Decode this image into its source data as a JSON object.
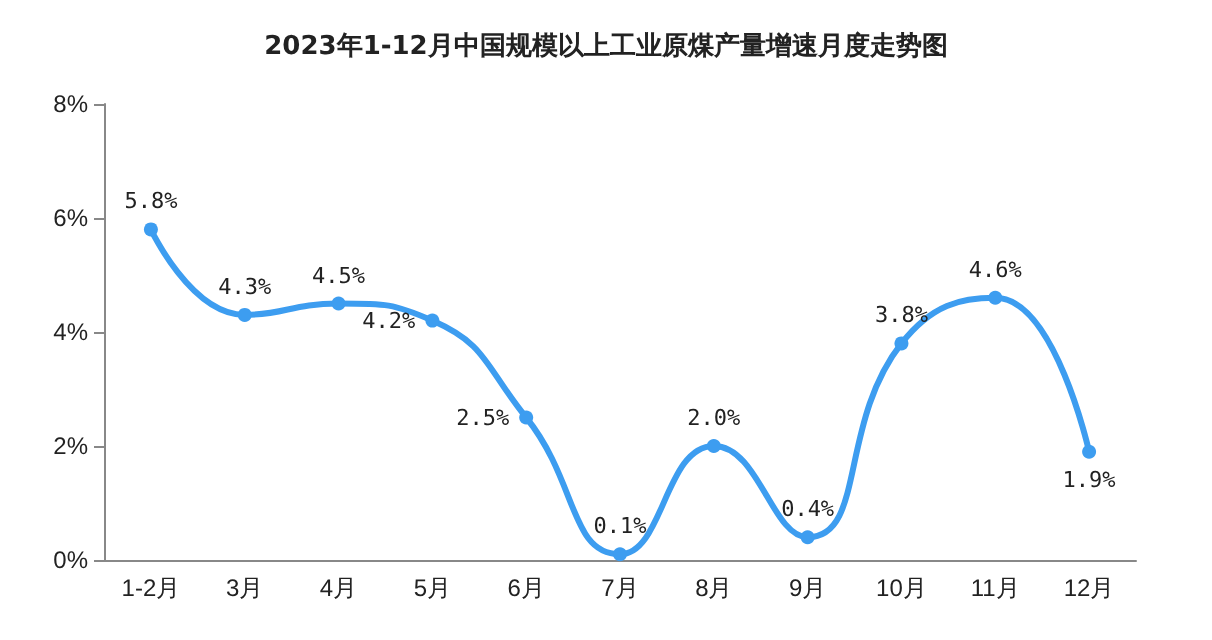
{
  "chart_data": {
    "type": "line",
    "title": "2023年1-12月中国规模以上工业原煤产量增速月度走势图",
    "categories": [
      "1-2月",
      "3月",
      "4月",
      "5月",
      "6月",
      "7月",
      "8月",
      "9月",
      "10月",
      "11月",
      "12月"
    ],
    "series": [
      {
        "color": "#3d9df0",
        "values": [
          5.8,
          4.3,
          4.5,
          4.2,
          2.5,
          0.1,
          2.0,
          0.4,
          3.8,
          4.6,
          1.9
        ],
        "value_labels": [
          "5.8%",
          "4.3%",
          "4.5%",
          "4.2%",
          "2.5%",
          "0.1%",
          "2.0%",
          "0.4%",
          "3.8%",
          "4.6%",
          "1.9%"
        ]
      }
    ],
    "ylim": [
      0,
      8
    ],
    "yticks": [
      {
        "value": 0,
        "label": "0%"
      },
      {
        "value": 2,
        "label": "2%"
      },
      {
        "value": 4,
        "label": "4%"
      },
      {
        "value": 6,
        "label": "6%"
      },
      {
        "value": 8,
        "label": "8%"
      }
    ],
    "grid": false,
    "marker": "circle",
    "line_style": "solid"
  }
}
